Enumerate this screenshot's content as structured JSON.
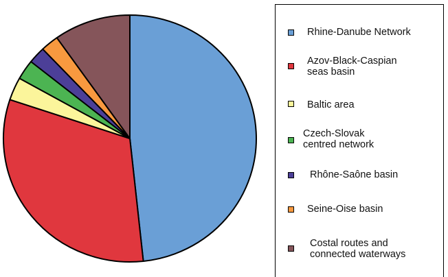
{
  "chart_data": {
    "type": "pie",
    "legend_position": "right",
    "slices": [
      {
        "label": "Rhine-Danube Network",
        "value": 48.3,
        "color": "#6a9fd6"
      },
      {
        "label": "Azov-Black-Caspian seas basin",
        "value": 31.8,
        "color": "#e0373e"
      },
      {
        "label": "Baltic area",
        "value": 3.0,
        "color": "#fbf59b"
      },
      {
        "label": "Czech-Slovak centred network",
        "value": 2.6,
        "color": "#4cb452"
      },
      {
        "label": "Rhône-Saône basin",
        "value": 2.2,
        "color": "#4c3f98"
      },
      {
        "label": "Seine-Oise basin",
        "value": 2.3,
        "color": "#f8993f"
      },
      {
        "label": "Costal routes and connected waterways",
        "value": 9.8,
        "color": "#85555a"
      }
    ]
  },
  "legend": [
    {
      "text": "Rhine-Danube Network"
    },
    {
      "text": "Azov-Black-Caspian\nseas basin"
    },
    {
      "text": "Baltic area"
    },
    {
      "text": "Czech-Slovak\ncentred network"
    },
    {
      "text": "Rhône-Saône basin"
    },
    {
      "text": "Seine-Oise basin"
    },
    {
      "text": "Costal routes and\nconnected waterways"
    }
  ]
}
